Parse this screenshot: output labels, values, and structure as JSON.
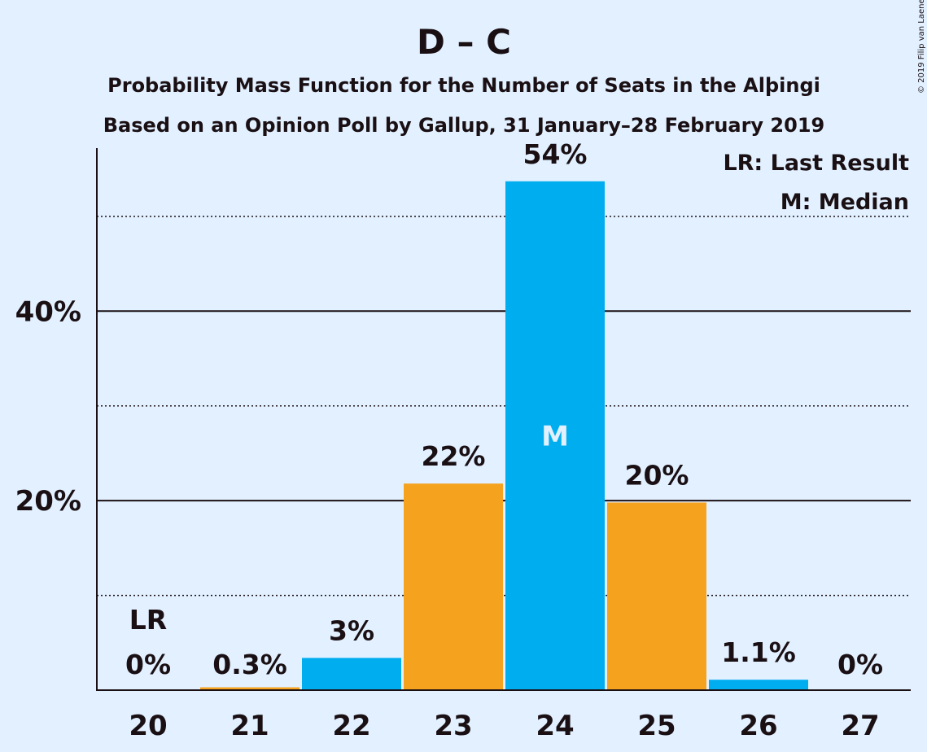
{
  "chart_data": {
    "type": "bar",
    "title": "D – C",
    "subtitle": "Probability Mass Function for the Number of Seats in the Alþingi",
    "subtitle2": "Based on an Opinion Poll by Gallup, 31 January–28 February 2019",
    "copyright": "© 2019 Filip van Laenen",
    "legend": [
      "LR: Last Result",
      "M: Median"
    ],
    "legend_position": "top-right",
    "categories": [
      "20",
      "21",
      "22",
      "23",
      "24",
      "25",
      "26",
      "27"
    ],
    "values": [
      0,
      0.3,
      3.4,
      21.8,
      53.7,
      19.8,
      1.1,
      0
    ],
    "labels": [
      "0%",
      "0.3%",
      "3%",
      "22%",
      "54%",
      "20%",
      "1.1%",
      "0%"
    ],
    "bar_colors": [
      "#00aeef",
      "#f5a31f",
      "#00aeef",
      "#f5a31f",
      "#00aeef",
      "#f5a31f",
      "#00aeef",
      "#f5a31f"
    ],
    "last_result_category": "20",
    "last_result_marker": "LR",
    "median_category": "24",
    "median_marker": "M",
    "yticks": [
      {
        "value": 20,
        "label": "20%"
      },
      {
        "value": 40,
        "label": "40%"
      }
    ],
    "dotted_gridlines": [
      10,
      30,
      50
    ],
    "ylim": [
      0,
      57.2
    ],
    "grid": true
  }
}
